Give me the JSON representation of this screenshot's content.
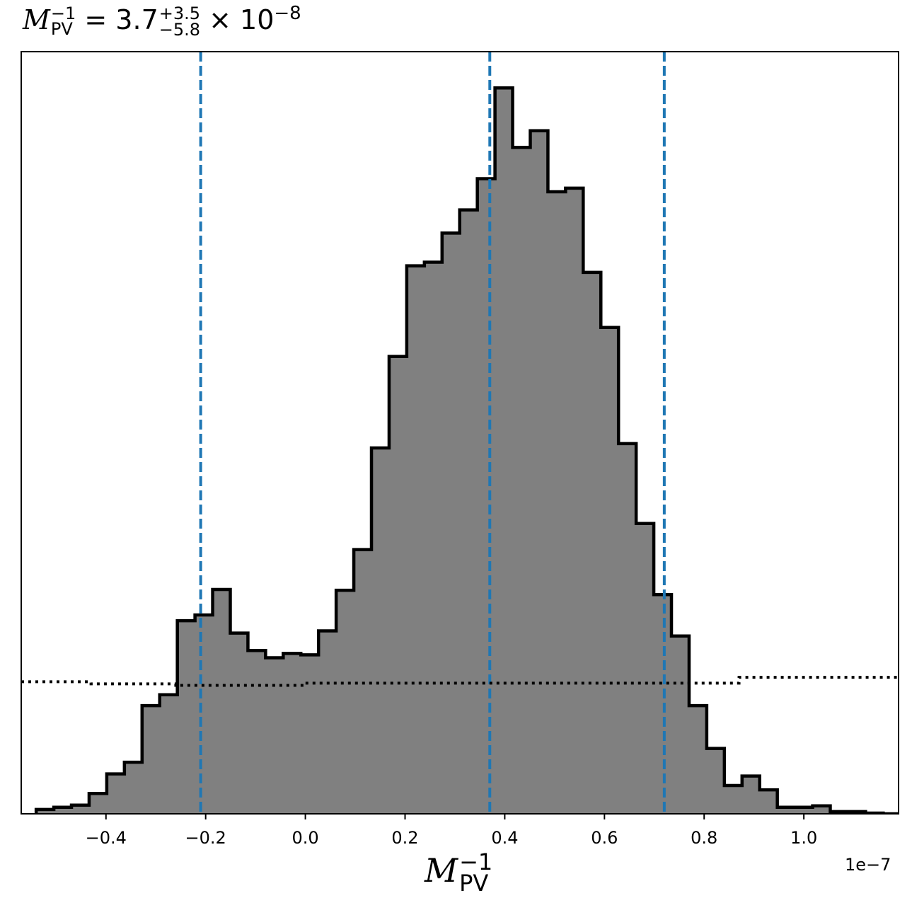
{
  "chart_data": {
    "type": "histogram",
    "title": {
      "symbol": "M",
      "sub": "PV",
      "sup": "−1",
      "equals": " = 3.7",
      "upper_err": "+3.5",
      "lower_err": "−5.8",
      "times": " × 10",
      "exponent": "−8"
    },
    "xlabel": {
      "symbol": "M",
      "sub": "PV",
      "sup": "−1"
    },
    "x_offset_label": "1e−7",
    "xlim": [
      -0.57,
      1.19
    ],
    "ylim": [
      0,
      1.05
    ],
    "x_ticks": [
      -0.4,
      -0.2,
      0.0,
      0.2,
      0.4,
      0.6,
      0.8,
      1.0
    ],
    "x_tick_labels": [
      "−0.4",
      "−0.2",
      "0.0",
      "0.2",
      "0.4",
      "0.6",
      "0.8",
      "1.0"
    ],
    "bin_start": -0.54,
    "bin_width": 0.0354,
    "bin_heights": [
      0.006,
      0.009,
      0.012,
      0.028,
      0.055,
      0.071,
      0.149,
      0.164,
      0.266,
      0.274,
      0.309,
      0.249,
      0.225,
      0.215,
      0.221,
      0.219,
      0.252,
      0.308,
      0.364,
      0.504,
      0.63,
      0.755,
      0.76,
      0.8,
      0.832,
      0.875,
      1.0,
      0.918,
      0.941,
      0.857,
      0.862,
      0.746,
      0.67,
      0.51,
      0.4,
      0.302,
      0.245,
      0.149,
      0.09,
      0.039,
      0.052,
      0.033,
      0.009,
      0.009,
      0.011,
      0.003,
      0.003,
      0.001,
      0.0
    ],
    "fill_color": "#808080",
    "edge_color": "#000000",
    "quantile_lines": {
      "values": [
        -0.21,
        0.37,
        0.72
      ],
      "color": "#1f77b4",
      "style": "dashed"
    },
    "prior_line": {
      "style": "dotted",
      "color": "#000000",
      "x": [
        -0.57,
        -0.43,
        -0.43,
        -0.26,
        -0.26,
        0.0,
        0.0,
        0.87,
        0.87,
        1.19
      ],
      "y": [
        0.182,
        0.182,
        0.179,
        0.179,
        0.177,
        0.177,
        0.18,
        0.18,
        0.188,
        0.188
      ]
    }
  }
}
